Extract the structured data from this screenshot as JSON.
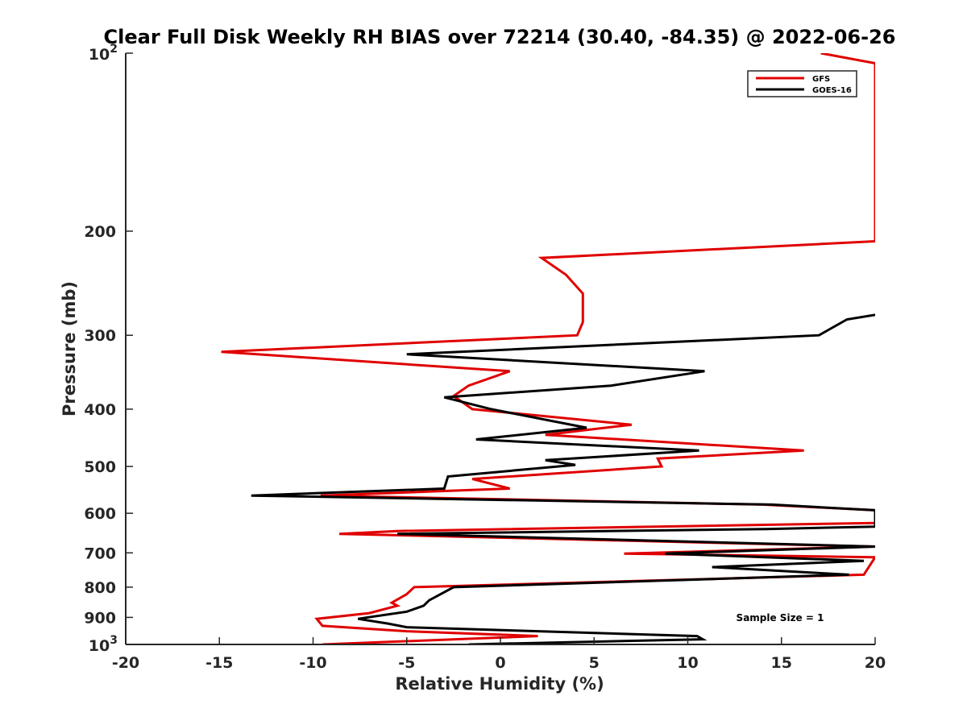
{
  "chart_data": {
    "type": "line",
    "title": "Clear Full Disk Weekly RH BIAS over 72214 (30.40, -84.35) @ 2022-06-26",
    "xlabel": "Relative Humidity (%)",
    "ylabel": "Pressure (mb)",
    "xlim": [
      -20,
      20
    ],
    "ylim": [
      100,
      1000
    ],
    "yscale": "log",
    "yreversed": true,
    "grid": false,
    "x_ticks": [
      {
        "value": -20,
        "label": "-20"
      },
      {
        "value": -15,
        "label": "-15"
      },
      {
        "value": -10,
        "label": "-10"
      },
      {
        "value": -5,
        "label": "-5"
      },
      {
        "value": 0,
        "label": "0"
      },
      {
        "value": 5,
        "label": "5"
      },
      {
        "value": 10,
        "label": "10"
      },
      {
        "value": 15,
        "label": "15"
      },
      {
        "value": 20,
        "label": "20"
      }
    ],
    "y_ticks": [
      {
        "value": 100,
        "base": "10",
        "exp": "2"
      },
      {
        "value": 200,
        "label": "200"
      },
      {
        "value": 300,
        "label": "300"
      },
      {
        "value": 400,
        "label": "400"
      },
      {
        "value": 500,
        "label": "500"
      },
      {
        "value": 600,
        "label": "600"
      },
      {
        "value": 700,
        "label": "700"
      },
      {
        "value": 800,
        "label": "800"
      },
      {
        "value": 900,
        "label": "900"
      },
      {
        "value": 1000,
        "base": "10",
        "exp": "3"
      }
    ],
    "legend_position": "top-right",
    "annotation": "Sample Size = 1",
    "series": [
      {
        "name": "GFS",
        "color": "#e00000",
        "points": [
          [
            17.1,
            100
          ],
          [
            20,
            104
          ],
          [
            20,
            208
          ],
          [
            2.2,
            222
          ],
          [
            3.5,
            237
          ],
          [
            4.4,
            255
          ],
          [
            4.4,
            285
          ],
          [
            4.1,
            300
          ],
          [
            -14.9,
            320
          ],
          [
            0.5,
            345
          ],
          [
            -1.7,
            365
          ],
          [
            -2.5,
            380
          ],
          [
            -1.5,
            400
          ],
          [
            7.0,
            425
          ],
          [
            2.4,
            442
          ],
          [
            16.2,
            470
          ],
          [
            8.4,
            485
          ],
          [
            8.6,
            500
          ],
          [
            -1.5,
            525
          ],
          [
            0.5,
            545
          ],
          [
            -9.6,
            560
          ],
          [
            14.0,
            580
          ],
          [
            20,
            593
          ],
          [
            20,
            623
          ],
          [
            11.0,
            630
          ],
          [
            -5.5,
            643
          ],
          [
            -8.6,
            650
          ],
          [
            20,
            683
          ],
          [
            6.6,
            702
          ],
          [
            20,
            712
          ],
          [
            19.4,
            762
          ],
          [
            -4.6,
            800
          ],
          [
            -5.0,
            822
          ],
          [
            -5.8,
            850
          ],
          [
            -5.5,
            860
          ],
          [
            -7.0,
            885
          ],
          [
            -9.8,
            905
          ],
          [
            -9.5,
            930
          ],
          [
            -5.0,
            950
          ],
          [
            2.0,
            968
          ],
          [
            -0.5,
            975
          ],
          [
            -9.5,
            1000
          ]
        ]
      },
      {
        "name": "GOES-16",
        "color": "#000000",
        "points": [
          [
            20,
            277
          ],
          [
            18.5,
            282
          ],
          [
            17.0,
            300
          ],
          [
            -5.0,
            323
          ],
          [
            10.9,
            345
          ],
          [
            5.9,
            365
          ],
          [
            -3.0,
            382
          ],
          [
            -0.5,
            400
          ],
          [
            4.6,
            430
          ],
          [
            -1.3,
            450
          ],
          [
            10.6,
            470
          ],
          [
            2.4,
            488
          ],
          [
            4.0,
            497
          ],
          [
            -2.8,
            520
          ],
          [
            -3.0,
            545
          ],
          [
            -13.3,
            560
          ],
          [
            14.5,
            580
          ],
          [
            20,
            593
          ],
          [
            20,
            632
          ],
          [
            14.2,
            638
          ],
          [
            -5.5,
            650
          ],
          [
            20,
            683
          ],
          [
            8.8,
            702
          ],
          [
            19.4,
            722
          ],
          [
            11.3,
            740
          ],
          [
            18.6,
            762
          ],
          [
            -2.5,
            800
          ],
          [
            -3.8,
            842
          ],
          [
            -4.1,
            860
          ],
          [
            -5.0,
            880
          ],
          [
            -7.6,
            905
          ],
          [
            -6.0,
            922
          ],
          [
            -5.0,
            935
          ],
          [
            10.5,
            968
          ],
          [
            10.8,
            980
          ],
          [
            -1.7,
            1000
          ]
        ]
      }
    ]
  }
}
